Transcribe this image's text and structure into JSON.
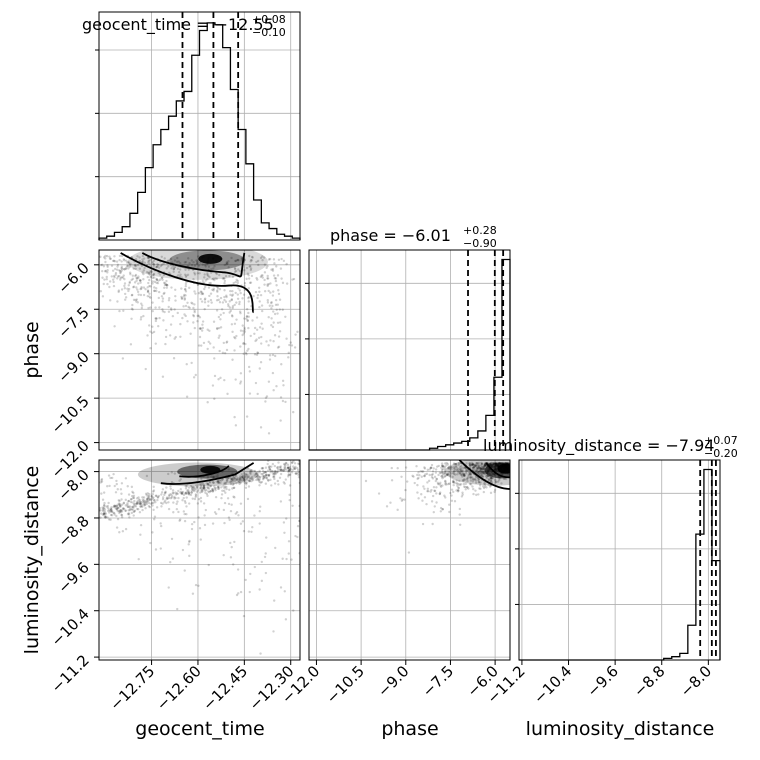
{
  "chart_data": {
    "type": "scatter",
    "parameters": [
      "geocent_time",
      "phase",
      "luminosity_distance"
    ],
    "axis_labels": {
      "geocent_time": "geocent_time",
      "phase": "phase",
      "luminosity_distance": "luminosity_distance"
    },
    "ranges": {
      "geocent_time": [
        -12.92,
        -12.27
      ],
      "phase": [
        -12.25,
        -5.5
      ],
      "luminosity_distance": [
        -11.25,
        -7.8
      ]
    },
    "ticks": {
      "geocent_time": [
        -12.75,
        -12.6,
        -12.45,
        -12.3
      ],
      "phase": [
        -12.0,
        -10.5,
        -9.0,
        -7.5,
        -6.0
      ],
      "luminosity_distance": [
        -11.2,
        -10.4,
        -9.6,
        -8.8,
        -8.0
      ]
    },
    "tick_labels": {
      "geocent_time": [
        "−12.75",
        "−12.60",
        "−12.45",
        "−12.30"
      ],
      "phase": [
        "−12.0",
        "−10.5",
        "−9.0",
        "−7.5",
        "−6.0"
      ],
      "luminosity_distance": [
        "−11.2",
        "−10.4",
        "−9.6",
        "−8.8",
        "−8.0"
      ]
    },
    "titles": {
      "geocent_time": {
        "text": "geocent_time = −12.55",
        "sup": "+0.08",
        "sub": "−0.10"
      },
      "phase": {
        "text": "phase = −6.01",
        "sup": "+0.28",
        "sub": "−0.90"
      },
      "luminosity_distance": {
        "text": "luminosity_distance = −7.94",
        "sup": "+0.07",
        "sub": "−0.20"
      }
    },
    "quantiles": {
      "geocent_time": [
        -12.65,
        -12.55,
        -12.47
      ],
      "phase": [
        -6.91,
        -6.01,
        -5.73
      ],
      "luminosity_distance": [
        -8.14,
        -7.94,
        -7.87
      ]
    },
    "histograms": {
      "geocent_time": {
        "edges": [
          -12.92,
          -12.895,
          -12.87,
          -12.845,
          -12.82,
          -12.795,
          -12.77,
          -12.745,
          -12.72,
          -12.695,
          -12.67,
          -12.645,
          -12.62,
          -12.595,
          -12.57,
          -12.545,
          -12.52,
          -12.495,
          -12.47,
          -12.445,
          -12.42,
          -12.395,
          -12.37,
          -12.345,
          -12.32,
          -12.295,
          -12.27
        ],
        "counts": [
          1,
          2,
          4,
          7,
          14,
          25,
          38,
          50,
          58,
          65,
          73,
          78,
          97,
          110,
          114,
          113,
          101,
          79,
          58,
          40,
          21,
          9,
          6,
          3,
          2,
          1
        ]
      },
      "phase": {
        "edges": [
          -12.25,
          -11.98,
          -11.71,
          -11.44,
          -11.17,
          -10.9,
          -10.63,
          -10.36,
          -10.09,
          -9.82,
          -9.55,
          -9.28,
          -9.01,
          -8.74,
          -8.47,
          -8.2,
          -7.93,
          -7.66,
          -7.39,
          -7.12,
          -6.85,
          -6.58,
          -6.31,
          -6.04,
          -5.77,
          -5.5
        ],
        "counts": [
          0,
          0,
          0,
          0,
          0,
          0,
          0,
          0,
          0,
          0,
          0,
          0,
          0,
          0,
          0,
          1,
          2,
          3,
          4,
          5,
          7,
          11,
          20,
          42,
          110
        ]
      },
      "luminosity_distance": {
        "edges": [
          -11.25,
          -11.112,
          -10.974,
          -10.836,
          -10.698,
          -10.56,
          -10.422,
          -10.284,
          -10.146,
          -10.008,
          -9.87,
          -9.732,
          -9.594,
          -9.456,
          -9.318,
          -9.18,
          -9.042,
          -8.904,
          -8.766,
          -8.628,
          -8.49,
          -8.352,
          -8.214,
          -8.076,
          -7.938,
          -7.8
        ],
        "counts": [
          0,
          0,
          0,
          0,
          0,
          0,
          0,
          0,
          0,
          0,
          0,
          0,
          0,
          0,
          0,
          0,
          0,
          0,
          1,
          2,
          4,
          21,
          76,
          115,
          60
        ]
      }
    },
    "grid": true,
    "line_color": "#000000",
    "density_color": "#000000"
  }
}
